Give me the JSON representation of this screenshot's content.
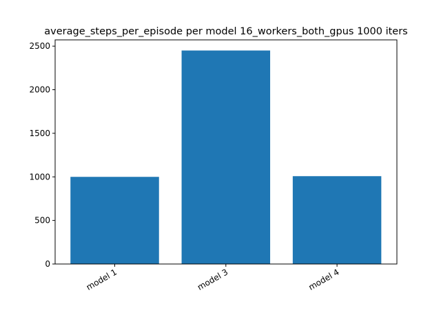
{
  "chart_data": {
    "type": "bar",
    "title": "average_steps_per_episode per model 16_workers_both_gpus 1000 iters",
    "xlabel": "",
    "ylabel": "",
    "categories": [
      "model 1",
      "model 3",
      "model 4"
    ],
    "values": [
      1000,
      2450,
      1008
    ],
    "ylim": [
      0,
      2572
    ],
    "yticks": [
      0,
      500,
      1000,
      1500,
      2000,
      2500
    ],
    "bar_color": "#1f77b4",
    "grid": false,
    "legend": "none"
  }
}
